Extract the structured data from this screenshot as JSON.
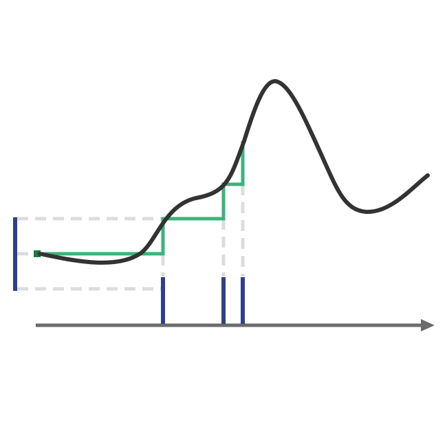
{
  "diagram": {
    "colors": {
      "background": "#ffffff",
      "curve": "#333333",
      "steps": "#3bb37a",
      "start_marker": "#1a7a44",
      "markers": "#2e3f8f",
      "guides": "#dcdcdc",
      "axis": "#6b6b6b"
    },
    "icons": {
      "axis_arrowhead": "arrow-right-icon"
    }
  }
}
